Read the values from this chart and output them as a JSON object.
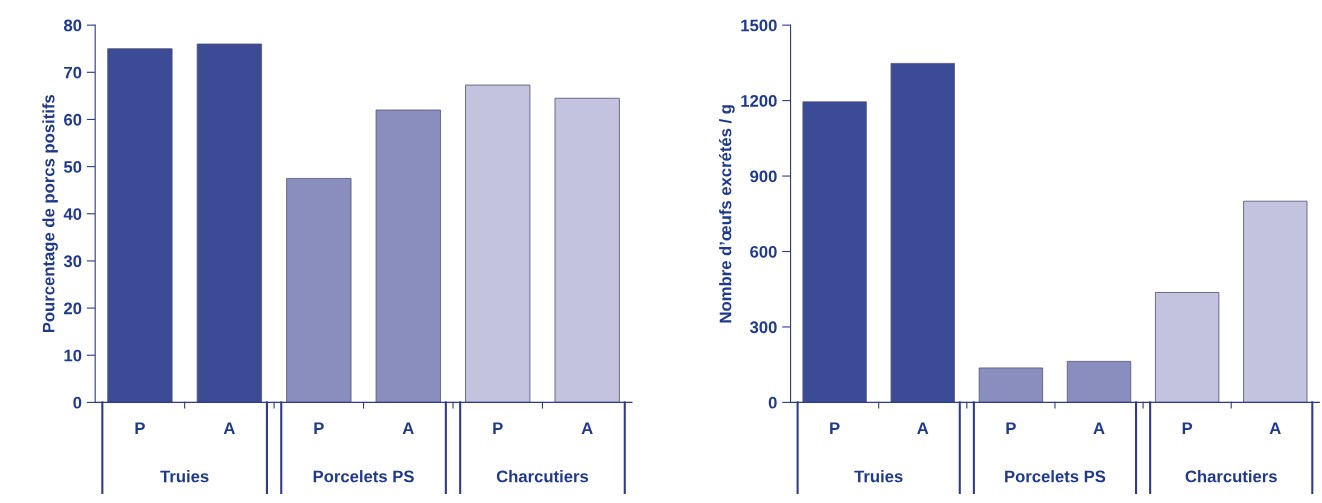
{
  "chart_data": [
    {
      "type": "bar",
      "ylabel": "Pourcentage de porcs positifs",
      "categories": [
        "P",
        "A",
        "P",
        "A",
        "P",
        "A"
      ],
      "values": [
        75,
        76,
        47.5,
        62,
        67.3,
        64.5
      ],
      "colors": [
        "#3b4b96",
        "#3b4b96",
        "#8a8ebe",
        "#8a8ebe",
        "#c3c3df",
        "#c3c3df"
      ],
      "ylim": [
        0,
        80
      ],
      "yticks": [
        0,
        10,
        20,
        30,
        40,
        50,
        60,
        70,
        80
      ],
      "annotations": [
        "Truies",
        "Porcelets PS",
        "Charcutiers"
      ]
    },
    {
      "type": "bar",
      "ylabel": "Nombre d’œufs excrétés / g",
      "categories": [
        "P",
        "A",
        "P",
        "A",
        "P",
        "A"
      ],
      "values": [
        1195,
        1348,
        137,
        163,
        437,
        800
      ],
      "colors": [
        "#3b4b96",
        "#3b4b96",
        "#8a8ebe",
        "#8a8ebe",
        "#c3c3df",
        "#c3c3df"
      ],
      "ylim": [
        0,
        1500
      ],
      "yticks": [
        0,
        300,
        600,
        900,
        1200,
        1500
      ],
      "annotations": [
        "Truies",
        "Porcelets PS",
        "Charcutiers"
      ]
    }
  ]
}
